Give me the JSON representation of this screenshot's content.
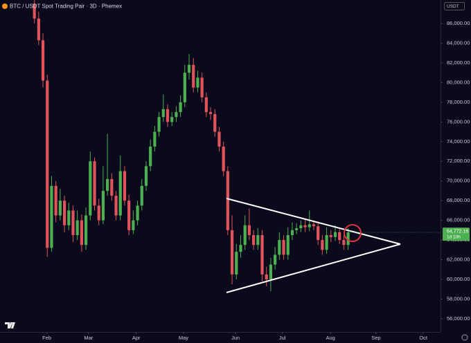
{
  "chart_data": {
    "type": "candlestick",
    "title": "BTC / USDT Spot Trading Pair · 3D · Phemex",
    "currency": "USDT",
    "price_label": "64,772.16",
    "countdown": "1d 10h",
    "up_color": "#4caf50",
    "down_color": "#e0535a",
    "open": [
      88000,
      86500,
      84300,
      80200,
      63200,
      69500,
      66500,
      68000,
      65500,
      67000,
      64500,
      66000,
      63500,
      66500,
      72000,
      67500,
      66000,
      69000,
      70200,
      68500,
      66500,
      71000,
      68000,
      65000,
      66000,
      67500,
      69500,
      71500,
      73500,
      75000,
      76500,
      77300,
      76000,
      76500,
      77000,
      78000,
      81000,
      81800,
      79500,
      80500,
      78500,
      77000,
      76800,
      75000,
      73500,
      71000,
      65000,
      60500,
      62800,
      63500,
      65500,
      64500,
      63500,
      64500,
      60500,
      60000,
      61500,
      62500,
      64000,
      62500,
      64500,
      65000,
      65200,
      65500,
      65300,
      65600,
      65400,
      64000,
      63000,
      64500,
      64300,
      64800,
      64000,
      63500
    ],
    "high": [
      88800,
      87200,
      85000,
      80800,
      70500,
      70000,
      69200,
      68500,
      67800,
      67500,
      67000,
      66600,
      67300,
      73000,
      72400,
      68200,
      71500,
      74800,
      70800,
      69000,
      72600,
      71500,
      68600,
      67000,
      68000,
      70200,
      72000,
      74200,
      75600,
      77000,
      78800,
      77800,
      77000,
      77600,
      78700,
      81800,
      82900,
      82500,
      81200,
      81000,
      79000,
      77500,
      77300,
      75500,
      74000,
      71500,
      66500,
      63600,
      64500,
      66500,
      67200,
      65000,
      65200,
      65000,
      61300,
      62200,
      63300,
      64800,
      64500,
      65300,
      65800,
      65700,
      66000,
      66200,
      67000,
      66000,
      65900,
      64500,
      65300,
      65000,
      65500,
      65200,
      64500,
      65200
    ],
    "low": [
      86000,
      83800,
      79500,
      62300,
      62800,
      65800,
      66000,
      64800,
      65000,
      63800,
      64000,
      62800,
      63000,
      66000,
      67000,
      65500,
      65600,
      68500,
      68000,
      66000,
      66000,
      67500,
      64500,
      64600,
      65500,
      67000,
      69000,
      71000,
      73000,
      74500,
      76000,
      75500,
      75600,
      76000,
      76500,
      77500,
      80300,
      79000,
      79000,
      78000,
      76500,
      76200,
      74500,
      73000,
      70500,
      64500,
      59500,
      60000,
      62200,
      63000,
      64000,
      63000,
      63000,
      59800,
      59300,
      58800,
      61000,
      62000,
      62000,
      62000,
      64000,
      64600,
      64800,
      64800,
      64900,
      65000,
      63500,
      62500,
      62600,
      63800,
      63900,
      63600,
      63000,
      63000
    ],
    "close": [
      86500,
      84300,
      80200,
      63200,
      69500,
      66500,
      68000,
      65500,
      67000,
      64500,
      66000,
      63500,
      66500,
      72000,
      67500,
      66000,
      69000,
      70200,
      68500,
      66500,
      71000,
      68000,
      65000,
      66000,
      67500,
      69500,
      71500,
      73500,
      75000,
      76500,
      77300,
      76000,
      76500,
      77000,
      78000,
      81000,
      81800,
      79500,
      80500,
      78500,
      77000,
      76800,
      75000,
      73500,
      71000,
      65000,
      60500,
      62800,
      63500,
      65500,
      64500,
      63500,
      64500,
      60500,
      60000,
      61500,
      62500,
      64000,
      62500,
      64500,
      65000,
      65200,
      65500,
      65300,
      65600,
      65400,
      64000,
      63000,
      64500,
      64300,
      64800,
      64000,
      63500,
      64772.16
    ],
    "xlim": [
      -8,
      94.5
    ],
    "xticks": [
      {
        "value": 2.9,
        "label": "Feb"
      },
      {
        "value": 12.6,
        "label": "Mar"
      },
      {
        "value": 23.7,
        "label": "Apr"
      },
      {
        "value": 34.7,
        "label": "May"
      },
      {
        "value": 46.8,
        "label": "Jun"
      },
      {
        "value": 57.7,
        "label": "Jul"
      },
      {
        "value": 68.9,
        "label": "Aug"
      },
      {
        "value": 79.5,
        "label": "Sep"
      },
      {
        "value": 90.5,
        "label": "Oct"
      }
    ],
    "ylim": [
      54660,
      88390
    ],
    "yticks": [
      {
        "value": 56000,
        "label": "56,000.00"
      },
      {
        "value": 58000,
        "label": "58,000.00"
      },
      {
        "value": 60000,
        "label": "60,000.00"
      },
      {
        "value": 62000,
        "label": "62,000.00"
      },
      {
        "value": 64000,
        "label": "64,000.00"
      },
      {
        "value": 66000,
        "label": "66,000.00"
      },
      {
        "value": 68000,
        "label": "68,000.00"
      },
      {
        "value": 70000,
        "label": "70,000.00"
      },
      {
        "value": 72000,
        "label": "72,000.00"
      },
      {
        "value": 74000,
        "label": "74,000.00"
      },
      {
        "value": 76000,
        "label": "76,000.00"
      },
      {
        "value": 78000,
        "label": "78,000.00"
      },
      {
        "value": 80000,
        "label": "80,000.00"
      },
      {
        "value": 82000,
        "label": "82,000.00"
      },
      {
        "value": 84000,
        "label": "84,000.00"
      },
      {
        "value": 86000,
        "label": "86,000.00"
      }
    ]
  }
}
